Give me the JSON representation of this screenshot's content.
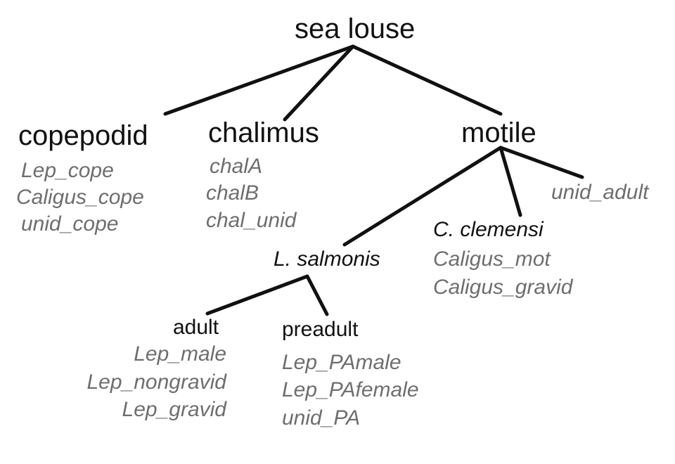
{
  "diagram": {
    "root": "sea louse",
    "stages": {
      "copepodid": {
        "label": "copepodid",
        "codes": [
          "Lep_cope",
          "Caligus_cope",
          "unid_cope"
        ]
      },
      "chalimus": {
        "label": "chalimus",
        "codes": [
          "chalA",
          "chalB",
          "chal_unid"
        ]
      },
      "motile": {
        "label": "motile",
        "species": {
          "lsalmonis": {
            "label": "L. salmonis",
            "adult": {
              "label": "adult",
              "codes": [
                "Lep_male",
                "Lep_nongravid",
                "Lep_gravid"
              ]
            },
            "preadult": {
              "label": "preadult",
              "codes": [
                "Lep_PAmale",
                "Lep_PAfemale",
                "unid_PA"
              ]
            }
          },
          "cclemensi": {
            "label": "C. clemensi",
            "codes": [
              "Caligus_mot",
              "Caligus_gravid"
            ]
          },
          "unid_adult": "unid_adult"
        }
      }
    },
    "colors": {
      "line": "#111111",
      "node_text": "#111111",
      "code_text": "#6e6e6e"
    }
  }
}
